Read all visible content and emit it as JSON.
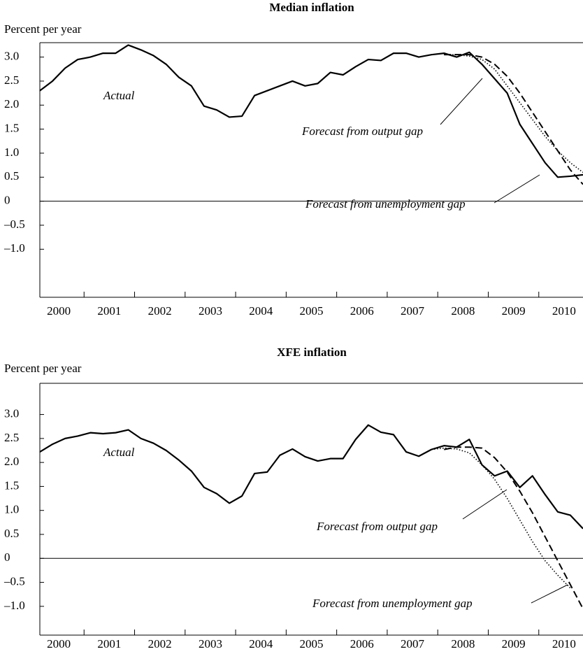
{
  "chart_data": [
    {
      "type": "line",
      "title": "Median inflation",
      "y_label": "Percent per year",
      "x": [
        2000.125,
        2000.375,
        2000.625,
        2000.875,
        2001.125,
        2001.375,
        2001.625,
        2001.875,
        2002.125,
        2002.375,
        2002.625,
        2002.875,
        2003.125,
        2003.375,
        2003.625,
        2003.875,
        2004.125,
        2004.375,
        2004.625,
        2004.875,
        2005.125,
        2005.375,
        2005.625,
        2005.875,
        2006.125,
        2006.375,
        2006.625,
        2006.875,
        2007.125,
        2007.375,
        2007.625,
        2007.875,
        2008.125,
        2008.375,
        2008.625,
        2008.875,
        2009.125,
        2009.375,
        2009.625,
        2009.875,
        2010.125,
        2010.375,
        2010.625,
        2010.875
      ],
      "series": [
        {
          "name": "Actual",
          "color": "#000000",
          "dash": "solid",
          "values": [
            2.3,
            2.5,
            2.77,
            2.95,
            3.0,
            3.08,
            3.08,
            3.25,
            3.15,
            3.03,
            2.85,
            2.58,
            2.4,
            1.98,
            1.9,
            1.75,
            1.77,
            2.2,
            2.3,
            2.4,
            2.5,
            2.4,
            2.45,
            2.68,
            2.63,
            2.8,
            2.95,
            2.93,
            3.08,
            3.08,
            3.0,
            3.05,
            3.08,
            3.0,
            3.1,
            2.85,
            2.55,
            2.25,
            1.6,
            1.2,
            0.8,
            0.5,
            0.52,
            0.55
          ]
        },
        {
          "name": "Forecast from output gap",
          "color": "#000000",
          "dash": "dotted",
          "values": [
            null,
            null,
            null,
            null,
            null,
            null,
            null,
            null,
            null,
            null,
            null,
            null,
            null,
            null,
            null,
            null,
            null,
            null,
            null,
            null,
            null,
            null,
            null,
            null,
            null,
            null,
            null,
            null,
            null,
            null,
            null,
            null,
            3.05,
            3.05,
            3.02,
            2.95,
            2.75,
            2.4,
            2.05,
            1.7,
            1.35,
            1.05,
            0.8,
            0.6
          ]
        },
        {
          "name": "Forecast from unemployment gap",
          "color": "#000000",
          "dash": "dashed",
          "values": [
            null,
            null,
            null,
            null,
            null,
            null,
            null,
            null,
            null,
            null,
            null,
            null,
            null,
            null,
            null,
            null,
            null,
            null,
            null,
            null,
            null,
            null,
            null,
            null,
            null,
            null,
            null,
            null,
            null,
            null,
            null,
            null,
            3.05,
            3.05,
            3.05,
            3.0,
            2.85,
            2.6,
            2.25,
            1.85,
            1.45,
            1.05,
            0.65,
            0.35
          ]
        }
      ],
      "xlim": [
        2000.125,
        2010.875
      ],
      "xticks": [
        2001,
        2002,
        2003,
        2004,
        2005,
        2006,
        2007,
        2008,
        2009,
        2010
      ],
      "xlabels": [
        2000,
        2001,
        2002,
        2003,
        2004,
        2005,
        2006,
        2007,
        2008,
        2009,
        2010
      ],
      "ylim": [
        -2,
        3.3
      ],
      "yticks": [
        {
          "value": 3,
          "label": "3.0"
        },
        2.5,
        {
          "value": 2,
          "label": "2.0"
        },
        1.5,
        {
          "value": 1,
          "label": "1.0"
        },
        0.5,
        0,
        {
          "value": -0.5,
          "label": "–0.5"
        },
        {
          "value": -1,
          "label": "–1.0"
        }
      ]
    },
    {
      "type": "line",
      "title": "XFE inflation",
      "y_label": "Percent per year",
      "x": [
        2000.125,
        2000.375,
        2000.625,
        2000.875,
        2001.125,
        2001.375,
        2001.625,
        2001.875,
        2002.125,
        2002.375,
        2002.625,
        2002.875,
        2003.125,
        2003.375,
        2003.625,
        2003.875,
        2004.125,
        2004.375,
        2004.625,
        2004.875,
        2005.125,
        2005.375,
        2005.625,
        2005.875,
        2006.125,
        2006.375,
        2006.625,
        2006.875,
        2007.125,
        2007.375,
        2007.625,
        2007.875,
        2008.125,
        2008.375,
        2008.625,
        2008.875,
        2009.125,
        2009.375,
        2009.625,
        2009.875,
        2010.125,
        2010.375,
        2010.625,
        2010.875
      ],
      "series": [
        {
          "name": "Actual",
          "color": "#000000",
          "dash": "solid",
          "values": [
            2.22,
            2.38,
            2.5,
            2.55,
            2.62,
            2.6,
            2.62,
            2.68,
            2.5,
            2.4,
            2.25,
            2.05,
            1.82,
            1.48,
            1.35,
            1.15,
            1.3,
            1.77,
            1.8,
            2.15,
            2.28,
            2.12,
            2.03,
            2.08,
            2.08,
            2.48,
            2.78,
            2.63,
            2.58,
            2.22,
            2.13,
            2.27,
            2.35,
            2.32,
            2.48,
            1.95,
            1.72,
            1.82,
            1.48,
            1.72,
            1.33,
            0.97,
            0.9,
            0.62
          ]
        },
        {
          "name": "Forecast from output gap",
          "color": "#000000",
          "dash": "dotted",
          "values": [
            null,
            null,
            null,
            null,
            null,
            null,
            null,
            null,
            null,
            null,
            null,
            null,
            null,
            null,
            null,
            null,
            null,
            null,
            null,
            null,
            null,
            null,
            null,
            null,
            null,
            null,
            null,
            null,
            null,
            null,
            null,
            2.27,
            2.3,
            2.28,
            2.2,
            1.95,
            1.65,
            1.25,
            0.8,
            0.35,
            -0.05,
            -0.35,
            -0.62,
            null
          ]
        },
        {
          "name": "Forecast from unemployment gap",
          "color": "#000000",
          "dash": "dashed",
          "values": [
            null,
            null,
            null,
            null,
            null,
            null,
            null,
            null,
            null,
            null,
            null,
            null,
            null,
            null,
            null,
            null,
            null,
            null,
            null,
            null,
            null,
            null,
            null,
            null,
            null,
            null,
            null,
            null,
            null,
            null,
            null,
            null,
            2.27,
            2.32,
            2.32,
            2.3,
            2.1,
            1.8,
            1.4,
            0.95,
            0.45,
            -0.05,
            -0.55,
            -1.05
          ]
        }
      ],
      "xlim": [
        2000.125,
        2010.875
      ],
      "xticks": [
        2001,
        2002,
        2003,
        2004,
        2005,
        2006,
        2007,
        2008,
        2009,
        2010
      ],
      "xlabels": [
        2000,
        2001,
        2002,
        2003,
        2004,
        2005,
        2006,
        2007,
        2008,
        2009,
        2010
      ],
      "ylim": [
        -1.6,
        3.65
      ],
      "yticks": [
        {
          "value": 3,
          "label": "3.0"
        },
        2.5,
        {
          "value": 2,
          "label": "2.0"
        },
        1.5,
        {
          "value": 1,
          "label": "1.0"
        },
        0.5,
        0,
        {
          "value": -0.5,
          "label": "–0.5"
        },
        {
          "value": -1,
          "label": "–1.0"
        }
      ]
    }
  ]
}
